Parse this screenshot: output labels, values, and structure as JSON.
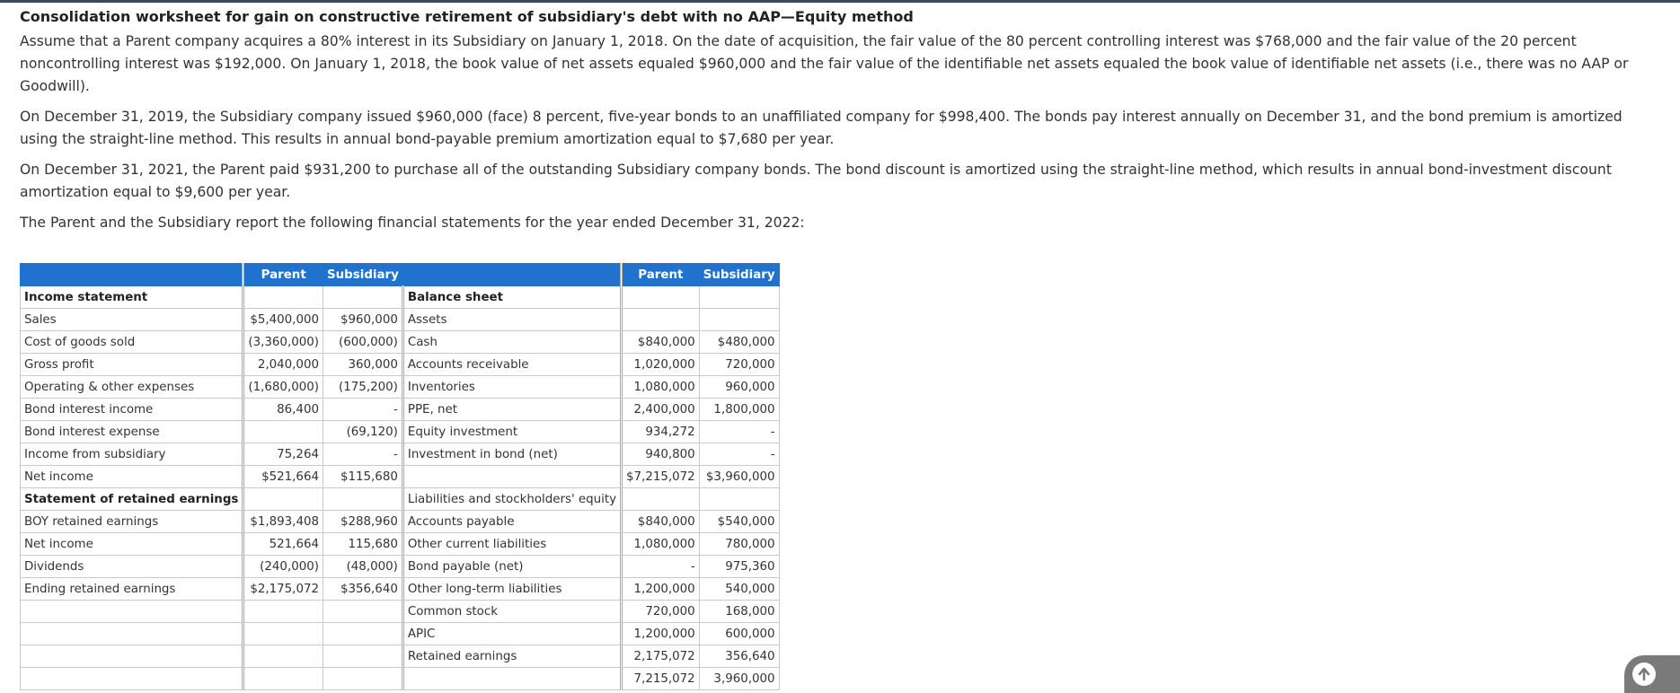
{
  "title": "Consolidation worksheet for gain on constructive retirement of subsidiary's debt with no AAP—Equity method",
  "paragraphs": [
    "Assume that a Parent company acquires a 80% interest in its Subsidiary on January 1, 2018. On the date of acquisition, the fair value of the 80 percent controlling interest was $768,000 and the fair value of the 20 percent noncontrolling interest was $192,000. On January 1, 2018, the book value of net assets equaled $960,000 and the fair value of the identifiable net assets equaled the book value of identifiable net assets (i.e., there was no AAP or Goodwill).",
    "On December 31, 2019, the Subsidiary company issued $960,000 (face) 8 percent, five-year bonds to an unaffiliated company for $998,400. The bonds pay interest annually on December 31, and the bond premium is amortized using the straight-line method. This results in annual bond-payable premium amortization equal to $7,680 per year.",
    "On December 31, 2021, the Parent paid $931,200 to purchase all of the outstanding Subsidiary company bonds. The bond discount is amortized using the straight-line method, which results in annual bond-investment discount amortization equal to $9,600 per year.",
    "The Parent and the Subsidiary report the following financial statements for the year ended December 31, 2022:"
  ],
  "table": {
    "headers": {
      "parent": "Parent",
      "subsidiary": "Subsidiary"
    },
    "rows": [
      {
        "l": "Income statement",
        "lb": true,
        "p": "",
        "s": "",
        "r": "Balance sheet",
        "rb": true,
        "rp": "",
        "rs": ""
      },
      {
        "l": "Sales",
        "p": "$5,400,000",
        "s": "$960,000",
        "r": "Assets",
        "rp": "",
        "rs": ""
      },
      {
        "l": "Cost of goods sold",
        "p": "(3,360,000)",
        "s": "(600,000)",
        "r": "Cash",
        "rp": "$840,000",
        "rs": "$480,000"
      },
      {
        "l": "Gross profit",
        "p": "2,040,000",
        "s": "360,000",
        "r": "Accounts receivable",
        "rp": "1,020,000",
        "rs": "720,000"
      },
      {
        "l": "Operating & other expenses",
        "p": "(1,680,000)",
        "s": "(175,200)",
        "r": "Inventories",
        "rp": "1,080,000",
        "rs": "960,000"
      },
      {
        "l": "Bond interest income",
        "p": "86,400",
        "s": "-",
        "r": "PPE, net",
        "rp": "2,400,000",
        "rs": "1,800,000"
      },
      {
        "l": "Bond interest expense",
        "p": "",
        "s": "(69,120)",
        "r": "Equity investment",
        "rp": "934,272",
        "rs": "-"
      },
      {
        "l": "Income from subsidiary",
        "p": "75,264",
        "s": "-",
        "r": "Investment in bond (net)",
        "rp": "940,800",
        "rs": "-"
      },
      {
        "l": "Net income",
        "p": "$521,664",
        "s": "$115,680",
        "r": "",
        "rp": "$7,215,072",
        "rs": "$3,960,000"
      },
      {
        "l": "Statement of retained earnings",
        "lb": true,
        "p": "",
        "s": "",
        "r": "Liabilities and stockholders' equity",
        "rp": "",
        "rs": ""
      },
      {
        "l": "BOY retained earnings",
        "p": "$1,893,408",
        "s": "$288,960",
        "r": "Accounts payable",
        "rp": "$840,000",
        "rs": "$540,000"
      },
      {
        "l": "Net income",
        "p": "521,664",
        "s": "115,680",
        "r": "Other current liabilities",
        "rp": "1,080,000",
        "rs": "780,000"
      },
      {
        "l": "Dividends",
        "p": "(240,000)",
        "s": "(48,000)",
        "r": "Bond payable (net)",
        "rp": "-",
        "rs": "975,360"
      },
      {
        "l": "Ending retained earnings",
        "p": "$2,175,072",
        "s": "$356,640",
        "r": "Other long-term liabilities",
        "rp": "1,200,000",
        "rs": "540,000"
      },
      {
        "l": "",
        "p": "",
        "s": "",
        "r": "Common stock",
        "rp": "720,000",
        "rs": "168,000"
      },
      {
        "l": "",
        "p": "",
        "s": "",
        "r": "APIC",
        "rp": "1,200,000",
        "rs": "600,000"
      },
      {
        "l": "",
        "p": "",
        "s": "",
        "r": "Retained earnings",
        "rp": "2,175,072",
        "rs": "356,640"
      },
      {
        "l": "",
        "p": "",
        "s": "",
        "r": "",
        "rp": "7,215,072",
        "rs": "3,960,000"
      }
    ]
  },
  "icons": {
    "scroll_top": "arrow-up-icon"
  },
  "colors": {
    "header_bg": "#1f73cf",
    "header_text": "#ffffff"
  }
}
